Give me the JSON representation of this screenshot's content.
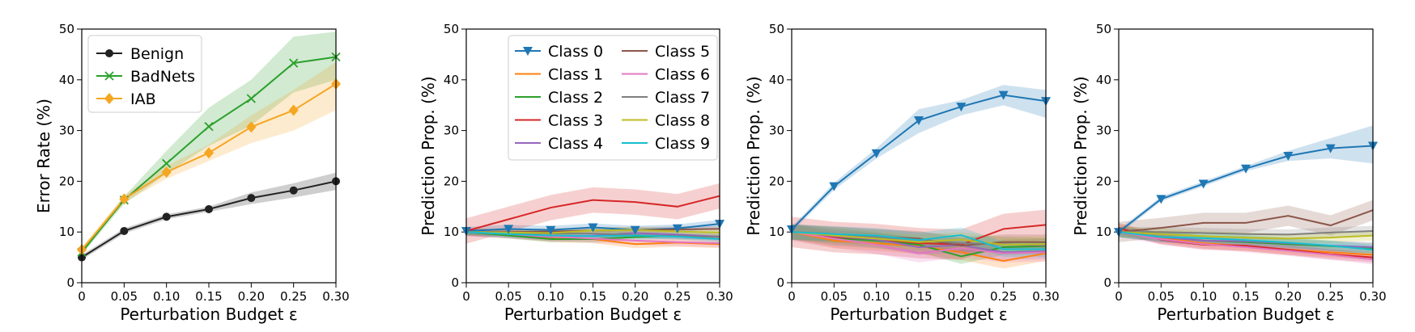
{
  "chart_data": [
    {
      "type": "line",
      "xlabel": "Perturbation Budget ε",
      "ylabel": "Error Rate (%)",
      "x": [
        0,
        0.05,
        0.1,
        0.15,
        0.2,
        0.25,
        0.3
      ],
      "x_tick_labels": [
        "0",
        "0.05",
        "0.10",
        "0.15",
        "0.20",
        "0.25",
        "0.30"
      ],
      "y_ticks": [
        "0",
        "10",
        "20",
        "30",
        "40",
        "50"
      ],
      "xlim": [
        0,
        0.3
      ],
      "ylim": [
        0,
        50
      ],
      "legend_position": "top-left",
      "series": [
        {
          "name": "Benign",
          "color": "#222222",
          "marker": "circle",
          "values": [
            5.0,
            10.2,
            13.0,
            14.5,
            16.7,
            18.2,
            20.0
          ],
          "lower": [
            4.5,
            9.7,
            12.5,
            14.0,
            15.5,
            16.8,
            18.3
          ],
          "upper": [
            5.5,
            10.7,
            13.5,
            15.0,
            17.8,
            19.6,
            21.7
          ]
        },
        {
          "name": "BadNets",
          "color": "#2ca02c",
          "marker": "x",
          "values": [
            6.0,
            16.3,
            23.5,
            30.8,
            36.3,
            43.3,
            44.5
          ],
          "lower": [
            5.5,
            15.5,
            21.5,
            27.0,
            31.0,
            37.5,
            40.0
          ],
          "upper": [
            6.5,
            17.0,
            26.0,
            34.5,
            40.0,
            48.5,
            49.5
          ]
        },
        {
          "name": "IAB",
          "color": "#f5a623",
          "marker": "diamond",
          "values": [
            6.5,
            16.5,
            21.8,
            25.6,
            30.7,
            34.0,
            39.2
          ],
          "lower": [
            6.0,
            15.8,
            20.5,
            24.0,
            27.5,
            30.0,
            34.0
          ],
          "upper": [
            7.0,
            17.2,
            23.0,
            27.2,
            33.0,
            38.0,
            43.5
          ]
        }
      ]
    },
    {
      "type": "line",
      "xlabel": "Perturbation Budget ε",
      "ylabel": "Prediction Prop. (%)",
      "x": [
        0,
        0.05,
        0.1,
        0.15,
        0.2,
        0.25,
        0.3
      ],
      "x_tick_labels": [
        "0",
        "0.05",
        "0.10",
        "0.15",
        "0.20",
        "0.25",
        "0.30"
      ],
      "y_ticks": [
        "0",
        "10",
        "20",
        "30",
        "40",
        "50"
      ],
      "xlim": [
        0,
        0.3
      ],
      "ylim": [
        0,
        50
      ],
      "legend_position": "top-right",
      "legend_columns": 2,
      "series": [
        {
          "name": "Class 0",
          "color": "#1f77b4",
          "marker": "triangle-down",
          "values": [
            10.2,
            10.6,
            10.4,
            10.9,
            10.4,
            10.7,
            11.6
          ],
          "band": 0.8
        },
        {
          "name": "Class 1",
          "color": "#ff7f0e",
          "values": [
            10.0,
            9.6,
            8.8,
            8.6,
            7.6,
            7.9,
            7.6
          ],
          "band": 0.8
        },
        {
          "name": "Class 2",
          "color": "#2ca02c",
          "values": [
            10.0,
            9.3,
            8.6,
            8.6,
            9.0,
            9.3,
            9.1
          ],
          "band": 0.6
        },
        {
          "name": "Class 3",
          "color": "#d62728",
          "values": [
            10.2,
            12.5,
            14.8,
            16.3,
            15.9,
            15.0,
            17.1
          ],
          "band": 2.5
        },
        {
          "name": "Class 4",
          "color": "#9467bd",
          "values": [
            10.0,
            9.6,
            9.0,
            9.3,
            9.8,
            9.5,
            9.1
          ],
          "band": 0.8
        },
        {
          "name": "Class 5",
          "color": "#8c564b",
          "values": [
            10.0,
            10.0,
            10.1,
            10.3,
            10.4,
            10.5,
            10.6
          ],
          "band": 0.6
        },
        {
          "name": "Class 6",
          "color": "#e377c2",
          "values": [
            10.0,
            9.6,
            9.1,
            8.7,
            8.3,
            8.0,
            7.8
          ],
          "band": 0.8
        },
        {
          "name": "Class 7",
          "color": "#7f7f7f",
          "values": [
            10.0,
            9.8,
            9.7,
            9.7,
            9.4,
            9.2,
            9.0
          ],
          "band": 0.6
        },
        {
          "name": "Class 8",
          "color": "#bcbd22",
          "values": [
            10.0,
            9.9,
            9.8,
            10.3,
            10.4,
            10.1,
            9.9
          ],
          "band": 0.6
        },
        {
          "name": "Class 9",
          "color": "#17becf",
          "values": [
            10.0,
            9.6,
            9.3,
            9.2,
            9.3,
            9.1,
            8.6
          ],
          "band": 0.6
        }
      ]
    },
    {
      "type": "line",
      "xlabel": "Perturbation Budget ε",
      "ylabel": "Prediction Prop. (%)",
      "x": [
        0,
        0.05,
        0.1,
        0.15,
        0.2,
        0.25,
        0.3
      ],
      "x_tick_labels": [
        "0",
        "0.05",
        "0.10",
        "0.15",
        "0.20",
        "0.25",
        "0.30"
      ],
      "y_ticks": [
        "0",
        "10",
        "20",
        "30",
        "40",
        "50"
      ],
      "xlim": [
        0,
        0.3
      ],
      "ylim": [
        0,
        50
      ],
      "series": [
        {
          "name": "Class 0",
          "color": "#1f77b4",
          "marker": "triangle-down",
          "values": [
            10.5,
            19.0,
            25.5,
            32.0,
            34.7,
            37.0,
            35.8
          ],
          "lower": [
            10.0,
            18.3,
            24.5,
            29.5,
            33.0,
            35.0,
            32.5
          ],
          "upper": [
            11.0,
            19.7,
            26.5,
            34.2,
            36.0,
            39.0,
            38.0
          ]
        },
        {
          "name": "Class 1",
          "color": "#ff7f0e",
          "values": [
            10.0,
            8.3,
            7.8,
            7.2,
            6.0,
            4.3,
            5.8
          ],
          "band": 1.5
        },
        {
          "name": "Class 2",
          "color": "#2ca02c",
          "values": [
            10.0,
            8.8,
            8.3,
            7.5,
            5.2,
            7.0,
            7.2
          ],
          "band": 1.5
        },
        {
          "name": "Class 3",
          "color": "#d62728",
          "values": [
            10.0,
            9.0,
            8.6,
            7.8,
            7.5,
            10.6,
            11.4
          ],
          "band": 3.0
        },
        {
          "name": "Class 4",
          "color": "#9467bd",
          "values": [
            10.0,
            9.2,
            8.5,
            7.0,
            7.4,
            6.0,
            6.2
          ],
          "band": 1.5
        },
        {
          "name": "Class 5",
          "color": "#8c564b",
          "values": [
            10.0,
            9.6,
            9.1,
            8.7,
            7.3,
            8.0,
            8.0
          ],
          "band": 1.5
        },
        {
          "name": "Class 6",
          "color": "#e377c2",
          "values": [
            10.0,
            8.7,
            7.5,
            5.8,
            6.8,
            5.8,
            6.0
          ],
          "band": 1.8
        },
        {
          "name": "Class 7",
          "color": "#7f7f7f",
          "values": [
            10.0,
            9.5,
            9.0,
            8.5,
            7.8,
            7.6,
            7.3
          ],
          "band": 1.5
        },
        {
          "name": "Class 8",
          "color": "#bcbd22",
          "values": [
            10.0,
            9.3,
            8.7,
            8.0,
            8.5,
            7.5,
            7.6
          ],
          "band": 1.5
        },
        {
          "name": "Class 9",
          "color": "#17becf",
          "values": [
            10.0,
            9.6,
            9.3,
            8.4,
            9.4,
            6.6,
            6.6
          ],
          "band": 1.5
        }
      ]
    },
    {
      "type": "line",
      "xlabel": "Perturbation Budget ε",
      "ylabel": "Prediction Prop. (%)",
      "x": [
        0,
        0.05,
        0.1,
        0.15,
        0.2,
        0.25,
        0.3
      ],
      "x_tick_labels": [
        "0",
        "0.05",
        "0.10",
        "0.15",
        "0.20",
        "0.25",
        "0.30"
      ],
      "y_ticks": [
        "0",
        "10",
        "20",
        "30",
        "40",
        "50"
      ],
      "xlim": [
        0,
        0.3
      ],
      "ylim": [
        0,
        50
      ],
      "series": [
        {
          "name": "Class 0",
          "color": "#1f77b4",
          "marker": "triangle-down",
          "values": [
            10.0,
            16.5,
            19.5,
            22.5,
            25.0,
            26.5,
            27.0
          ],
          "lower": [
            9.5,
            16.0,
            19.0,
            22.0,
            24.0,
            24.5,
            23.5
          ],
          "upper": [
            10.5,
            17.0,
            20.0,
            23.0,
            26.0,
            28.5,
            31.0
          ]
        },
        {
          "name": "Class 1",
          "color": "#ff7f0e",
          "values": [
            10.5,
            8.8,
            7.8,
            7.2,
            6.5,
            6.0,
            5.5
          ],
          "band": 1.0
        },
        {
          "name": "Class 2",
          "color": "#2ca02c",
          "values": [
            10.0,
            9.0,
            8.3,
            8.0,
            7.6,
            7.2,
            6.8
          ],
          "band": 1.0
        },
        {
          "name": "Class 3",
          "color": "#d62728",
          "values": [
            10.8,
            8.5,
            7.5,
            7.3,
            6.5,
            5.6,
            5.0
          ],
          "band": 1.0
        },
        {
          "name": "Class 4",
          "color": "#9467bd",
          "values": [
            10.0,
            9.0,
            8.3,
            8.2,
            7.8,
            7.3,
            7.0
          ],
          "band": 1.0
        },
        {
          "name": "Class 5",
          "color": "#8c564b",
          "values": [
            10.0,
            10.8,
            11.8,
            11.8,
            13.2,
            11.3,
            14.3
          ],
          "band": 2.0
        },
        {
          "name": "Class 6",
          "color": "#e377c2",
          "values": [
            10.0,
            8.6,
            7.6,
            7.0,
            6.3,
            5.5,
            4.6
          ],
          "band": 1.0
        },
        {
          "name": "Class 7",
          "color": "#7f7f7f",
          "values": [
            10.0,
            10.0,
            9.8,
            9.6,
            9.5,
            9.9,
            10.2
          ],
          "band": 1.0
        },
        {
          "name": "Class 8",
          "color": "#bcbd22",
          "values": [
            10.0,
            9.6,
            9.2,
            8.9,
            8.7,
            8.9,
            9.3
          ],
          "band": 1.0
        },
        {
          "name": "Class 9",
          "color": "#17becf",
          "values": [
            10.0,
            9.0,
            8.8,
            8.4,
            7.9,
            7.3,
            6.5
          ],
          "band": 1.0
        }
      ]
    }
  ]
}
